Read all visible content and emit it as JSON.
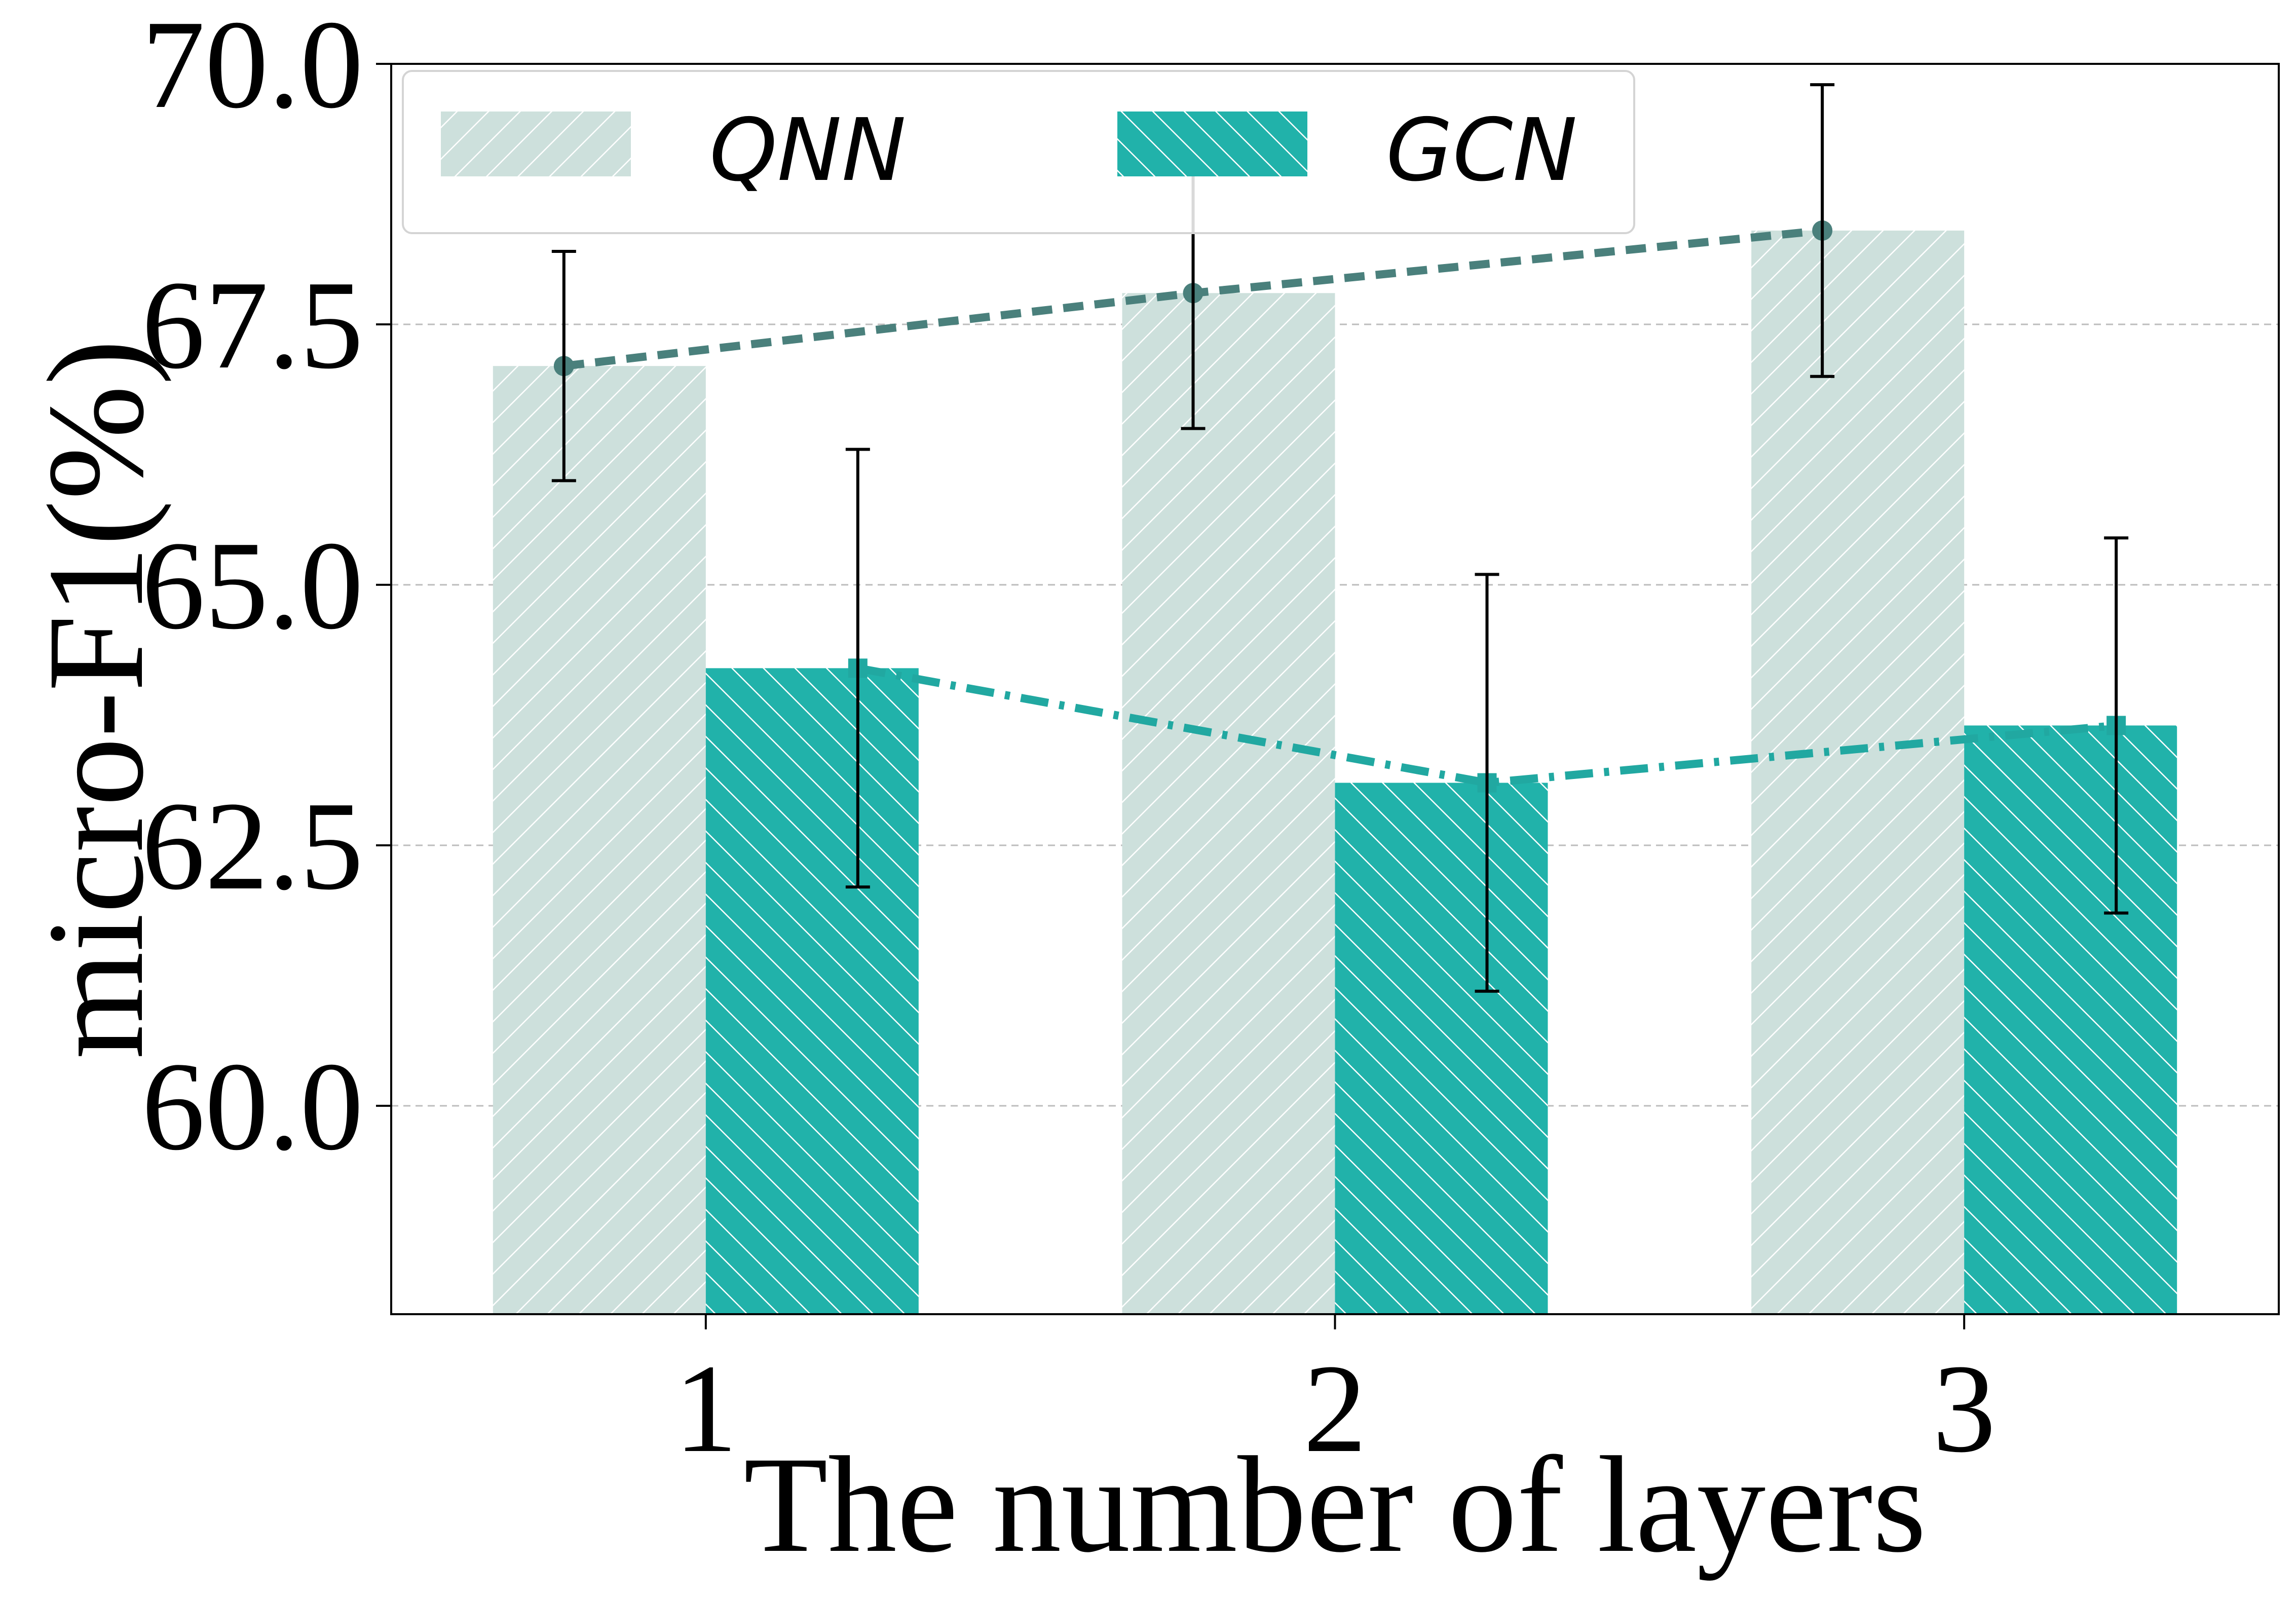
{
  "chart_data": {
    "type": "bar",
    "xlabel": "The number of layers",
    "ylabel": "micro-F1(%)",
    "categories": [
      "1",
      "2",
      "3"
    ],
    "ylim": [
      58.0,
      70.0
    ],
    "yticks": [
      60.0,
      62.5,
      65.0,
      67.5,
      70.0
    ],
    "ytick_labels": [
      "60.0",
      "62.5",
      "65.0",
      "67.5",
      "70.0"
    ],
    "grid": "horizontal dashed",
    "legend": {
      "placement": "top-left",
      "entries": [
        "QNN",
        "GCN"
      ]
    },
    "series": [
      {
        "name": "QNN",
        "values": [
          67.1,
          67.8,
          68.4
        ],
        "errors": [
          1.1,
          1.3,
          1.4
        ],
        "color": "#cde0dc",
        "hatch": "forward-diagonal",
        "line_color": "#4a807c",
        "line_style": "dashed"
      },
      {
        "name": "GCN",
        "values": [
          64.2,
          63.1,
          63.65
        ],
        "errors": [
          2.1,
          2.0,
          1.8
        ],
        "color": "#21b2aa",
        "hatch": "back-diagonal",
        "line_color": "#21a8a1",
        "line_style": "dash-dot"
      }
    ]
  }
}
